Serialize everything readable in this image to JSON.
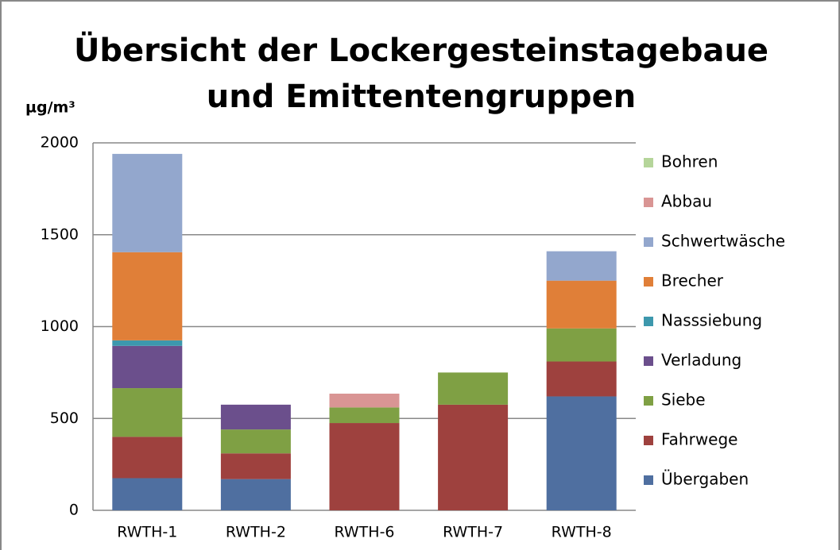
{
  "chart_data": {
    "type": "stacked_bar",
    "title": [
      "Übersicht der Lockergesteinstagebaue",
      "und Emittentengruppen"
    ],
    "y_label": "µg/m³",
    "categories": [
      "RWTH-1",
      "RWTH-2",
      "RWTH-6",
      "RWTH-7",
      "RWTH-8"
    ],
    "series": [
      {
        "name": "Übergaben",
        "color": "#4f6fa0",
        "values": [
          175,
          170,
          0,
          0,
          620
        ]
      },
      {
        "name": "Fahrwege",
        "color": "#9e413e",
        "values": [
          225,
          140,
          475,
          575,
          190
        ]
      },
      {
        "name": "Siebe",
        "color": "#7fa044",
        "values": [
          265,
          130,
          85,
          175,
          180
        ]
      },
      {
        "name": "Verladung",
        "color": "#6b4f8c",
        "values": [
          230,
          135,
          0,
          0,
          0
        ]
      },
      {
        "name": "Nasssiebung",
        "color": "#3d98ad",
        "values": [
          30,
          0,
          0,
          0,
          0
        ]
      },
      {
        "name": "Brecher",
        "color": "#e07f38",
        "values": [
          480,
          0,
          0,
          0,
          260
        ]
      },
      {
        "name": "Schwertwäsche",
        "color": "#93a7cd",
        "values": [
          535,
          0,
          0,
          0,
          160
        ]
      },
      {
        "name": "Abbau",
        "color": "#d99594",
        "values": [
          0,
          0,
          75,
          0,
          0
        ]
      },
      {
        "name": "Bohren",
        "color": "#b5d59a",
        "values": [
          0,
          0,
          0,
          0,
          0
        ]
      }
    ],
    "ylim": [
      0,
      2000
    ],
    "yticks": [
      0,
      500,
      1000,
      1500,
      2000
    ],
    "grid": true,
    "legend": "right"
  }
}
